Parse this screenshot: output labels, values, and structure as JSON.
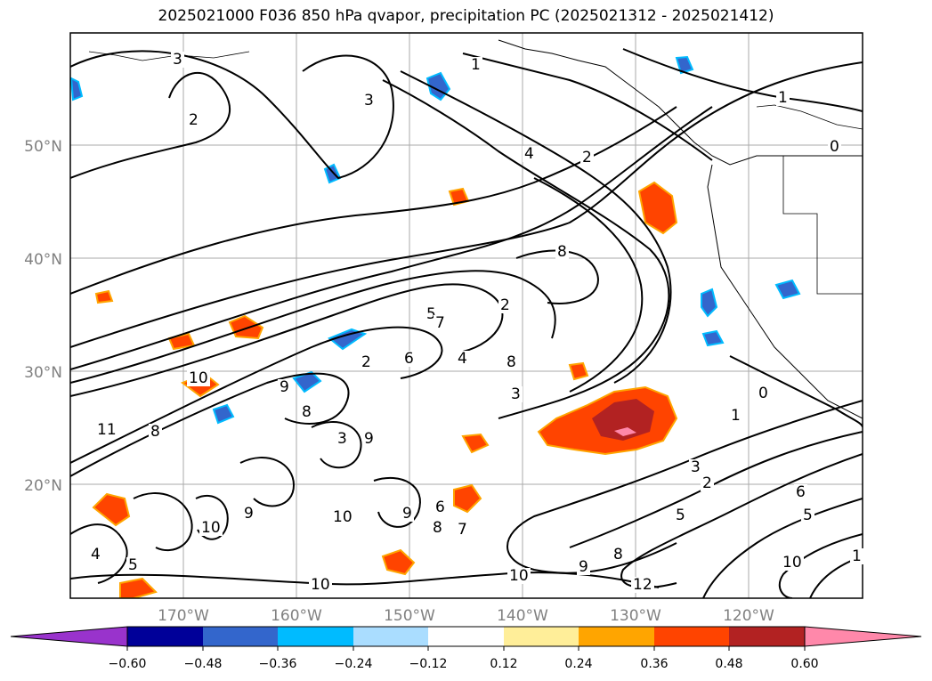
{
  "title": "2025021000 F036 850 hPa qvapor, precipitation PC (2025021312 - 2025021412)",
  "latitudes": [
    "50°N",
    "40°N",
    "30°N",
    "20°N"
  ],
  "longitudes": [
    "170°W",
    "160°W",
    "150°W",
    "140°W",
    "130°W",
    "120°W"
  ],
  "colorbar": {
    "labels": [
      "−0.60",
      "−0.48",
      "−0.36",
      "−0.24",
      "−0.12",
      "0.12",
      "0.24",
      "0.36",
      "0.48",
      "0.60"
    ],
    "colors": [
      "#9933cc",
      "#000099",
      "#3366cc",
      "#00bbff",
      "#aaddff",
      "#ffffff",
      "#ffee99",
      "#ffa500",
      "#ff4400",
      "#b22222",
      "#ff88aa"
    ]
  },
  "contour_labels": [
    "3",
    "2",
    "1",
    "3",
    "4",
    "2",
    "1",
    "0",
    "8",
    "5",
    "6",
    "4",
    "7",
    "8",
    "10",
    "11",
    "8",
    "9",
    "2",
    "8",
    "9",
    "3",
    "4",
    "10",
    "5",
    "9",
    "10",
    "10",
    "9",
    "6",
    "8",
    "7",
    "10",
    "9",
    "8",
    "12",
    "3",
    "2",
    "0",
    "1",
    "3",
    "2",
    "5",
    "6",
    "5",
    "10",
    "1"
  ]
}
